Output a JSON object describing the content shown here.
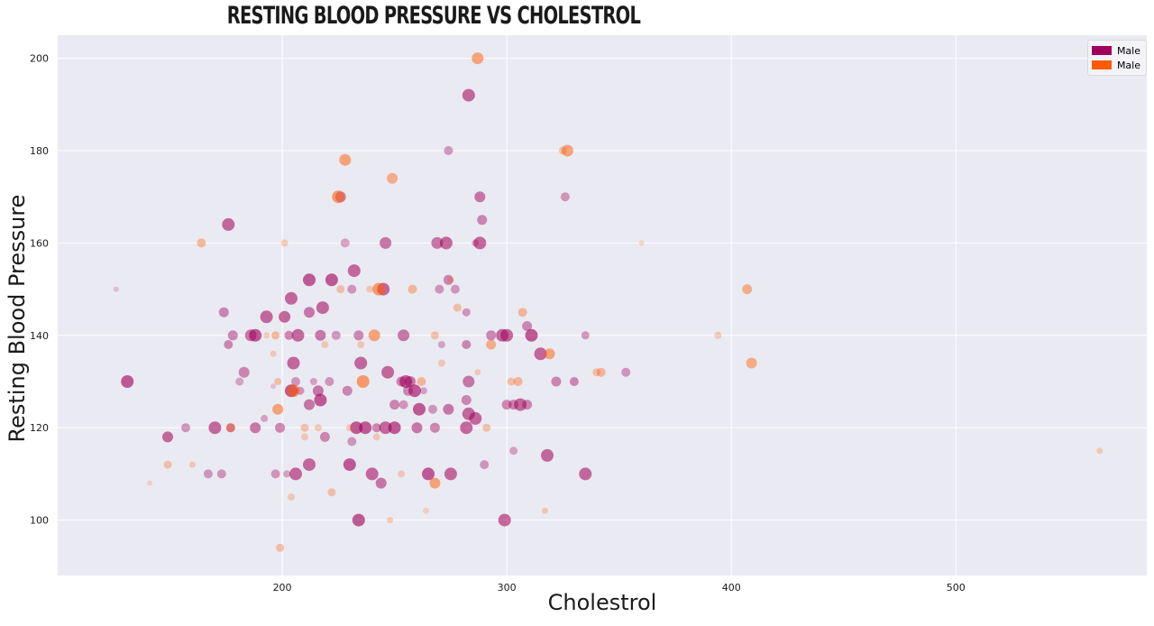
{
  "chart_data": {
    "type": "scatter",
    "title": "RESTING BLOOD PRESSURE VS CHOLESTROL",
    "xlabel": "Cholestrol",
    "ylabel": "Resting Blood Pressure",
    "xlim": [
      100,
      585
    ],
    "ylim": [
      88,
      205
    ],
    "xticks": [
      200,
      300,
      400,
      500
    ],
    "yticks": [
      100,
      120,
      140,
      160,
      180,
      200
    ],
    "grid": true,
    "legend_position": "top-right",
    "series": [
      {
        "name": "Male",
        "color": "#a0005a",
        "points": [
          [
            126,
            150,
            0.3,
            6
          ],
          [
            131,
            130,
            1,
            14
          ],
          [
            149,
            118,
            0.9,
            12
          ],
          [
            157,
            120,
            0.6,
            10
          ],
          [
            167,
            110,
            0.6,
            10
          ],
          [
            170,
            120,
            0.9,
            14
          ],
          [
            173,
            110,
            0.6,
            10
          ],
          [
            174,
            145,
            0.7,
            11
          ],
          [
            176,
            164,
            0.9,
            14
          ],
          [
            176,
            138,
            0.7,
            10
          ],
          [
            177,
            120,
            0.7,
            10
          ],
          [
            178,
            140,
            0.7,
            11
          ],
          [
            181,
            130,
            0.5,
            9
          ],
          [
            183,
            132,
            0.7,
            12
          ],
          [
            186,
            140,
            0.8,
            13
          ],
          [
            188,
            140,
            1,
            14
          ],
          [
            188,
            120,
            0.8,
            12
          ],
          [
            192,
            122,
            0.5,
            8
          ],
          [
            193,
            144,
            0.9,
            14
          ],
          [
            196,
            129,
            0.3,
            6
          ],
          [
            197,
            110,
            0.6,
            10
          ],
          [
            199,
            120,
            0.7,
            11
          ],
          [
            201,
            144,
            0.9,
            13
          ],
          [
            202,
            110,
            0.5,
            8
          ],
          [
            203,
            140,
            0.7,
            10
          ],
          [
            204,
            148,
            0.9,
            14
          ],
          [
            204,
            128,
            1,
            14
          ],
          [
            205,
            134,
            0.9,
            14
          ],
          [
            206,
            110,
            0.9,
            14
          ],
          [
            206,
            130,
            0.6,
            10
          ],
          [
            207,
            140,
            0.9,
            14
          ],
          [
            208,
            128,
            0.6,
            9
          ],
          [
            212,
            125,
            0.8,
            12
          ],
          [
            212,
            145,
            0.8,
            12
          ],
          [
            212,
            112,
            0.9,
            14
          ],
          [
            212,
            152,
            1,
            14
          ],
          [
            214,
            130,
            0.5,
            8
          ],
          [
            216,
            128,
            0.8,
            12
          ],
          [
            217,
            140,
            0.8,
            12
          ],
          [
            217,
            126,
            1,
            14
          ],
          [
            218,
            146,
            0.9,
            14
          ],
          [
            219,
            118,
            0.7,
            11
          ],
          [
            221,
            130,
            0.6,
            10
          ],
          [
            222,
            152,
            1,
            14
          ],
          [
            224,
            140,
            0.6,
            10
          ],
          [
            226,
            170,
            0.7,
            12
          ],
          [
            228,
            160,
            0.5,
            10
          ],
          [
            229,
            128,
            0.7,
            11
          ],
          [
            230,
            112,
            1,
            14
          ],
          [
            231,
            117,
            0.6,
            10
          ],
          [
            231,
            150,
            0.6,
            10
          ],
          [
            232,
            154,
            0.9,
            14
          ],
          [
            233,
            120,
            1,
            14
          ],
          [
            234,
            140,
            0.7,
            11
          ],
          [
            234,
            100,
            1,
            14
          ],
          [
            235,
            134,
            0.9,
            14
          ],
          [
            237,
            120,
            1,
            14
          ],
          [
            240,
            110,
            0.9,
            14
          ],
          [
            242,
            120,
            0.7,
            10
          ],
          [
            244,
            108,
            0.8,
            12
          ],
          [
            245,
            150,
            0.9,
            14
          ],
          [
            246,
            120,
            0.9,
            14
          ],
          [
            246,
            160,
            0.8,
            13
          ],
          [
            247,
            132,
            0.9,
            14
          ],
          [
            250,
            120,
            1,
            14
          ],
          [
            250,
            125,
            0.7,
            11
          ],
          [
            253,
            130,
            0.7,
            11
          ],
          [
            254,
            140,
            0.8,
            13
          ],
          [
            254,
            125,
            0.6,
            10
          ],
          [
            255,
            130,
            1,
            14
          ],
          [
            256,
            128,
            0.7,
            11
          ],
          [
            257,
            130,
            0.8,
            12
          ],
          [
            259,
            128,
            1,
            14
          ],
          [
            260,
            120,
            0.8,
            12
          ],
          [
            261,
            124,
            1,
            14
          ],
          [
            263,
            128,
            0.5,
            8
          ],
          [
            265,
            110,
            1,
            14
          ],
          [
            267,
            124,
            0.6,
            10
          ],
          [
            268,
            120,
            0.7,
            11
          ],
          [
            269,
            160,
            0.8,
            13
          ],
          [
            270,
            150,
            0.6,
            10
          ],
          [
            271,
            138,
            0.5,
            8
          ],
          [
            273,
            160,
            0.9,
            14
          ],
          [
            274,
            124,
            0.8,
            12
          ],
          [
            274,
            152,
            0.7,
            11
          ],
          [
            274,
            180,
            0.6,
            10
          ],
          [
            275,
            110,
            0.9,
            14
          ],
          [
            277,
            150,
            0.6,
            10
          ],
          [
            282,
            138,
            0.7,
            10
          ],
          [
            282,
            145,
            0.6,
            9
          ],
          [
            282,
            120,
            0.9,
            14
          ],
          [
            282,
            126,
            0.7,
            11
          ],
          [
            283,
            123,
            0.9,
            14
          ],
          [
            283,
            130,
            0.8,
            13
          ],
          [
            283,
            192,
            0.9,
            14
          ],
          [
            286,
            122,
            0.9,
            14
          ],
          [
            286,
            160,
            0.5,
            8
          ],
          [
            288,
            160,
            0.9,
            14
          ],
          [
            288,
            170,
            0.8,
            12
          ],
          [
            289,
            165,
            0.7,
            11
          ],
          [
            290,
            112,
            0.6,
            10
          ],
          [
            293,
            140,
            0.7,
            11
          ],
          [
            298,
            140,
            0.9,
            14
          ],
          [
            299,
            100,
            0.9,
            14
          ],
          [
            300,
            125,
            0.7,
            11
          ],
          [
            300,
            140,
            0.9,
            14
          ],
          [
            303,
            115,
            0.5,
            9
          ],
          [
            303,
            125,
            0.7,
            11
          ],
          [
            306,
            125,
            0.9,
            14
          ],
          [
            309,
            142,
            0.7,
            11
          ],
          [
            309,
            125,
            0.7,
            11
          ],
          [
            311,
            140,
            1,
            14
          ],
          [
            315,
            136,
            0.9,
            14
          ],
          [
            318,
            114,
            0.9,
            14
          ],
          [
            322,
            130,
            0.7,
            11
          ],
          [
            326,
            170,
            0.6,
            10
          ],
          [
            330,
            130,
            0.7,
            10
          ],
          [
            335,
            140,
            0.6,
            9
          ],
          [
            335,
            110,
            0.9,
            14
          ],
          [
            353,
            132,
            0.6,
            10
          ]
        ]
      },
      {
        "name": "Male",
        "color": "#ff5a00",
        "points": [
          [
            141,
            108,
            0.3,
            6
          ],
          [
            149,
            112,
            0.5,
            9
          ],
          [
            160,
            112,
            0.4,
            7
          ],
          [
            164,
            160,
            0.6,
            10
          ],
          [
            177,
            120,
            0.6,
            10
          ],
          [
            193,
            140,
            0.4,
            7
          ],
          [
            196,
            136,
            0.4,
            7
          ],
          [
            197,
            140,
            0.6,
            9
          ],
          [
            198,
            124,
            0.8,
            12
          ],
          [
            198,
            130,
            0.5,
            8
          ],
          [
            199,
            94,
            0.5,
            9
          ],
          [
            201,
            160,
            0.4,
            8
          ],
          [
            204,
            105,
            0.4,
            8
          ],
          [
            205,
            128,
            0.9,
            14
          ],
          [
            210,
            120,
            0.5,
            9
          ],
          [
            210,
            118,
            0.4,
            8
          ],
          [
            216,
            120,
            0.4,
            8
          ],
          [
            219,
            138,
            0.4,
            8
          ],
          [
            222,
            106,
            0.5,
            9
          ],
          [
            225,
            170,
            0.9,
            14
          ],
          [
            226,
            150,
            0.5,
            9
          ],
          [
            228,
            178,
            0.8,
            13
          ],
          [
            230,
            120,
            0.4,
            8
          ],
          [
            235,
            138,
            0.4,
            8
          ],
          [
            236,
            130,
            0.9,
            14
          ],
          [
            239,
            150,
            0.4,
            8
          ],
          [
            241,
            140,
            0.8,
            13
          ],
          [
            242,
            118,
            0.4,
            8
          ],
          [
            243,
            150,
            0.9,
            14
          ],
          [
            248,
            100,
            0.4,
            7
          ],
          [
            249,
            174,
            0.7,
            12
          ],
          [
            253,
            110,
            0.4,
            8
          ],
          [
            258,
            150,
            0.6,
            10
          ],
          [
            262,
            130,
            0.6,
            10
          ],
          [
            264,
            102,
            0.3,
            7
          ],
          [
            268,
            108,
            0.8,
            12
          ],
          [
            268,
            140,
            0.5,
            9
          ],
          [
            271,
            134,
            0.4,
            8
          ],
          [
            275,
            152,
            0.4,
            7
          ],
          [
            278,
            146,
            0.5,
            9
          ],
          [
            287,
            132,
            0.4,
            7
          ],
          [
            287,
            200,
            0.8,
            13
          ],
          [
            291,
            120,
            0.5,
            9
          ],
          [
            293,
            138,
            0.7,
            11
          ],
          [
            302,
            130,
            0.5,
            9
          ],
          [
            305,
            130,
            0.6,
            10
          ],
          [
            307,
            145,
            0.6,
            10
          ],
          [
            317,
            102,
            0.4,
            7
          ],
          [
            319,
            136,
            0.8,
            12
          ],
          [
            325,
            180,
            0.5,
            9
          ],
          [
            327,
            180,
            0.8,
            13
          ],
          [
            340,
            132,
            0.5,
            9
          ],
          [
            342,
            132,
            0.6,
            10
          ],
          [
            360,
            160,
            0.3,
            6
          ],
          [
            394,
            140,
            0.4,
            8
          ],
          [
            407,
            150,
            0.7,
            11
          ],
          [
            409,
            134,
            0.7,
            12
          ],
          [
            564,
            115,
            0.4,
            7
          ]
        ]
      }
    ]
  }
}
